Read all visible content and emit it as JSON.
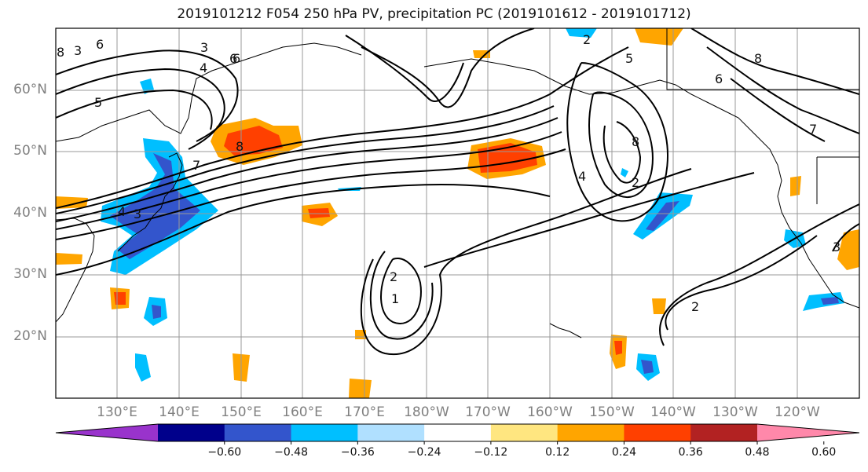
{
  "title": "2019101212 F054 250 hPa PV, precipitation PC (2019101612 - 2019101712)",
  "map": {
    "projection": "equirectangular",
    "lon_range_east": [
      120,
      250
    ],
    "lat_range": [
      10,
      70
    ],
    "grid": true,
    "lat_labels": [
      "60°N",
      "50°N",
      "40°N",
      "30°N",
      "20°N"
    ],
    "lon_labels": [
      "130°E",
      "140°E",
      "150°E",
      "160°E",
      "170°E",
      "180°W",
      "170°W",
      "160°W",
      "150°W",
      "140°W",
      "130°W",
      "120°W"
    ],
    "pv_contour_labels": [
      "6",
      "3",
      "4",
      "5",
      "6",
      "8",
      "7",
      "8",
      "4",
      "3",
      "2",
      "1",
      "2",
      "2",
      "8",
      "6",
      "5",
      "6",
      "3",
      "8",
      "2",
      "7",
      "4",
      "3"
    ]
  },
  "colorbar": {
    "ticks": [
      "−0.60",
      "−0.48",
      "−0.36",
      "−0.24",
      "−0.12",
      "0.12",
      "0.24",
      "0.36",
      "0.48",
      "0.60"
    ],
    "colors": [
      "#9933cc",
      "#00008b",
      "#3355cc",
      "#00bfff",
      "#b0e0ff",
      "#ffffff",
      "#ffe680",
      "#ffa500",
      "#ff4000",
      "#b22222",
      "#ff88aa"
    ],
    "extend": "both"
  }
}
